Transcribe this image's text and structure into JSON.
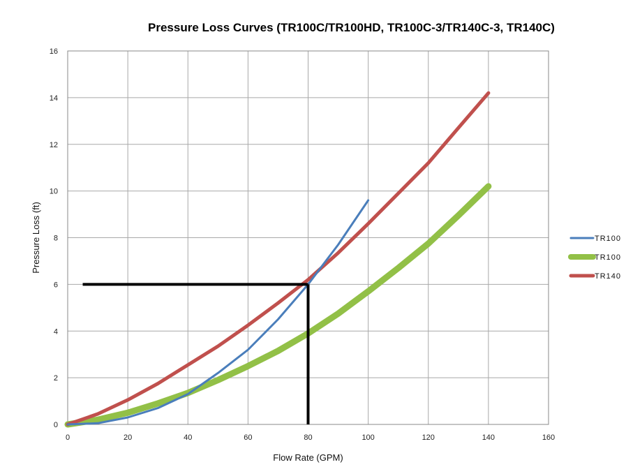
{
  "chart_data": {
    "type": "line",
    "title": "Pressure Loss Curves (TR100C/TR100HD, TR100C-3/TR140C-3, TR140C)",
    "xlabel": "Flow Rate (GPM)",
    "ylabel": "Pressure Loss (ft)",
    "xlim": [
      0,
      160
    ],
    "ylim": [
      0,
      16
    ],
    "xticks": [
      "0",
      "20",
      "40",
      "60",
      "80",
      "100",
      "120",
      "140",
      "160"
    ],
    "yticks": [
      "0",
      "2",
      "4",
      "6",
      "8",
      "10",
      "12",
      "14",
      "16"
    ],
    "grid": true,
    "legend_position": "right",
    "series": [
      {
        "name": "TR100",
        "color": "#4a7ebb",
        "x": [
          0,
          10,
          20,
          30,
          40,
          50,
          60,
          70,
          80,
          90,
          100
        ],
        "y": [
          0,
          0.05,
          0.3,
          0.7,
          1.3,
          2.2,
          3.2,
          4.5,
          6.0,
          7.7,
          9.6
        ]
      },
      {
        "name": "TR100",
        "color": "#92c047",
        "x": [
          0,
          10,
          20,
          30,
          40,
          50,
          60,
          70,
          80,
          90,
          100,
          110,
          120,
          130,
          140
        ],
        "y": [
          0,
          0.2,
          0.5,
          0.9,
          1.35,
          1.9,
          2.5,
          3.15,
          3.9,
          4.75,
          5.7,
          6.7,
          7.75,
          8.95,
          10.2
        ]
      },
      {
        "name": "TR140",
        "color": "#c0504d",
        "x": [
          0,
          10,
          20,
          30,
          40,
          50,
          60,
          70,
          80,
          90,
          100,
          110,
          120,
          130,
          140
        ],
        "y": [
          0,
          0.45,
          1.05,
          1.75,
          2.55,
          3.35,
          4.25,
          5.2,
          6.2,
          7.35,
          8.6,
          9.9,
          11.2,
          12.7,
          14.2
        ]
      }
    ],
    "annotations": [
      {
        "type": "reference-line",
        "color": "#000000",
        "from": [
          5,
          6
        ],
        "to": [
          80,
          6
        ]
      },
      {
        "type": "reference-line",
        "color": "#000000",
        "from": [
          80,
          6
        ],
        "to": [
          80,
          0
        ]
      }
    ]
  }
}
